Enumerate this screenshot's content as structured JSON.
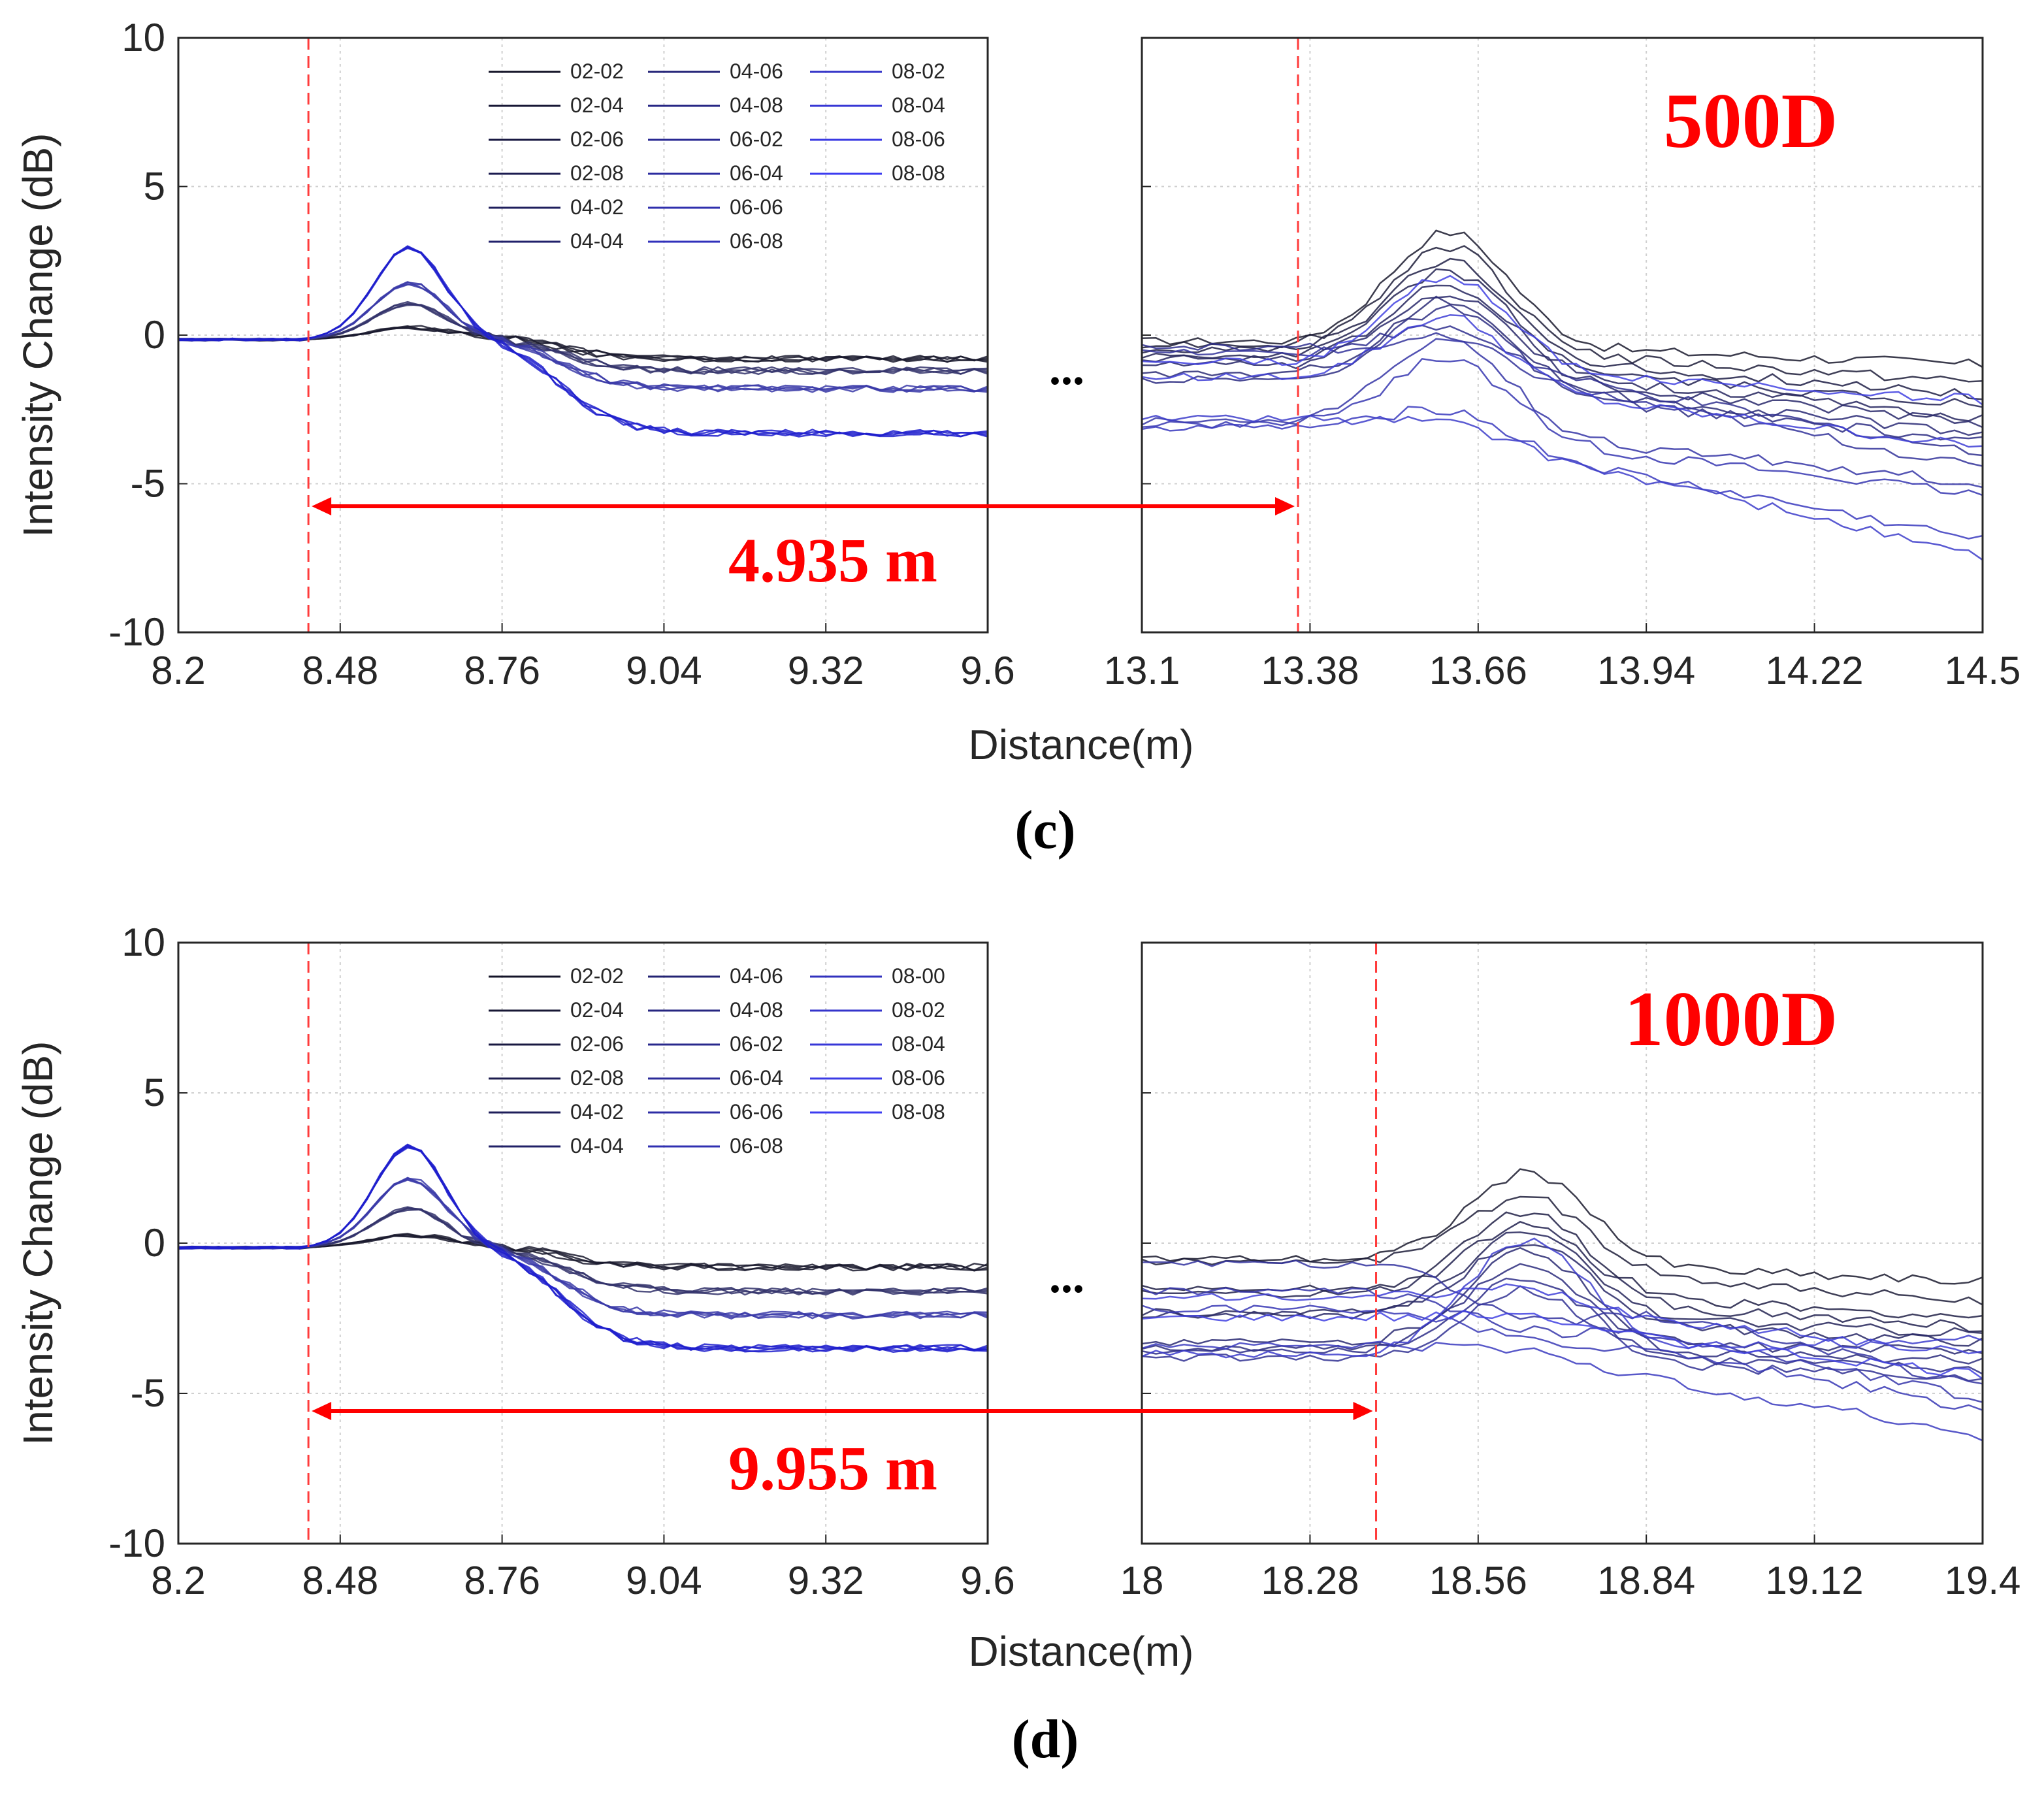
{
  "chart_data": [
    {
      "type": "line",
      "panel_label": "(c)",
      "sample_label": "500D",
      "ylabel": "Intensity Change (dB)",
      "xlabel": "Distance(m)",
      "ylim": [
        -10,
        10
      ],
      "yticks": [
        "10",
        "5",
        "0",
        "-5",
        "-10"
      ],
      "grid": true,
      "break_symbol": "...",
      "legend_location": "top of left subplot",
      "legend": [
        "02-02",
        "02-04",
        "02-06",
        "02-08",
        "04-02",
        "04-04",
        "04-06",
        "04-08",
        "06-02",
        "06-04",
        "06-06",
        "06-08",
        "08-02",
        "08-04",
        "08-06",
        "08-08"
      ],
      "distance_annotation": "4.935 m",
      "left_axis": {
        "xlim": [
          8.2,
          9.6
        ],
        "xticks": [
          "8.2",
          "8.48",
          "8.76",
          "9.04",
          "9.32",
          "9.6"
        ],
        "marker_x": 8.425,
        "groups": [
          {
            "peak": 0.3,
            "plateau": -0.8,
            "color": "#1a1a2e",
            "count": 4
          },
          {
            "peak": 1.1,
            "plateau": -1.2,
            "color": "#33336b",
            "count": 4
          },
          {
            "peak": 1.8,
            "plateau": -1.8,
            "color": "#3a3aa8",
            "count": 4
          },
          {
            "peak": 3.0,
            "plateau": -3.3,
            "color": "#1f1fcc",
            "count": 4
          }
        ]
      },
      "right_axis": {
        "xlim": [
          13.1,
          14.5
        ],
        "xticks": [
          "13.1",
          "13.38",
          "13.66",
          "13.94",
          "14.22",
          "14.5"
        ],
        "marker_x": 13.36,
        "start_levels": [
          -0.2,
          -0.3,
          -0.5,
          -0.7,
          -0.8,
          -1.0,
          -1.3,
          -1.5,
          -0.4,
          -0.6,
          -2.9,
          -3.0,
          -3.1,
          -2.8,
          -1.4,
          -0.9
        ],
        "peaks": [
          3.6,
          3.2,
          2.7,
          2.4,
          2.0,
          1.7,
          1.5,
          1.2,
          0.8,
          0.5,
          0.2,
          -0.4,
          -1.9,
          -2.2,
          1.0,
          2.2
        ],
        "end_levels": [
          -1.0,
          -1.6,
          -2.0,
          -2.4,
          -2.8,
          -3.0,
          -3.3,
          -3.6,
          -4.0,
          -4.5,
          -5.0,
          -5.4,
          -6.9,
          -7.5,
          -3.8,
          -2.2
        ]
      }
    },
    {
      "type": "line",
      "panel_label": "(d)",
      "sample_label": "1000D",
      "ylabel": "Intensity Change (dB)",
      "xlabel": "Distance(m)",
      "ylim": [
        -10,
        10
      ],
      "yticks": [
        "10",
        "5",
        "0",
        "-5",
        "-10"
      ],
      "grid": true,
      "break_symbol": "...",
      "legend_location": "top of left subplot",
      "legend": [
        "02-02",
        "02-04",
        "02-06",
        "02-08",
        "04-02",
        "04-04",
        "04-06",
        "04-08",
        "06-02",
        "06-04",
        "06-06",
        "06-08",
        "08-00",
        "08-02",
        "08-04",
        "08-06",
        "08-08"
      ],
      "distance_annotation": "9.955 m",
      "left_axis": {
        "xlim": [
          8.2,
          9.6
        ],
        "xticks": [
          "8.2",
          "8.48",
          "8.76",
          "9.04",
          "9.32",
          "9.6"
        ],
        "marker_x": 8.425,
        "groups": [
          {
            "peak": 0.3,
            "plateau": -0.8,
            "color": "#1a1a2e",
            "count": 4
          },
          {
            "peak": 1.2,
            "plateau": -1.6,
            "color": "#33336b",
            "count": 4
          },
          {
            "peak": 2.2,
            "plateau": -2.4,
            "color": "#3a3aa8",
            "count": 4
          },
          {
            "peak": 3.3,
            "plateau": -3.5,
            "color": "#1f1fcc",
            "count": 5
          }
        ]
      },
      "right_axis": {
        "xlim": [
          18.0,
          19.4
        ],
        "xticks": [
          "18",
          "18.28",
          "18.56",
          "18.84",
          "19.12",
          "19.4"
        ],
        "marker_x": 18.39,
        "start_levels": [
          -0.5,
          -0.6,
          -1.5,
          -1.7,
          -2.3,
          -2.4,
          -3.3,
          -3.5,
          -3.6,
          -3.8,
          -0.7,
          -1.6,
          -2.2,
          -3.4,
          -3.7,
          -1.8,
          -2.5
        ],
        "peaks": [
          2.5,
          1.8,
          1.2,
          0.8,
          0.5,
          0.2,
          -0.2,
          -0.6,
          -1.0,
          -1.4,
          -1.8,
          -2.2,
          -2.6,
          -3.0,
          0.0,
          -1.2,
          -2.0
        ],
        "end_levels": [
          -1.3,
          -2.0,
          -2.5,
          -2.8,
          -3.0,
          -3.3,
          -3.6,
          -3.9,
          -4.2,
          -4.5,
          -4.8,
          -5.2,
          -5.6,
          -6.4,
          -3.2,
          -3.7,
          -4.4
        ]
      }
    }
  ]
}
